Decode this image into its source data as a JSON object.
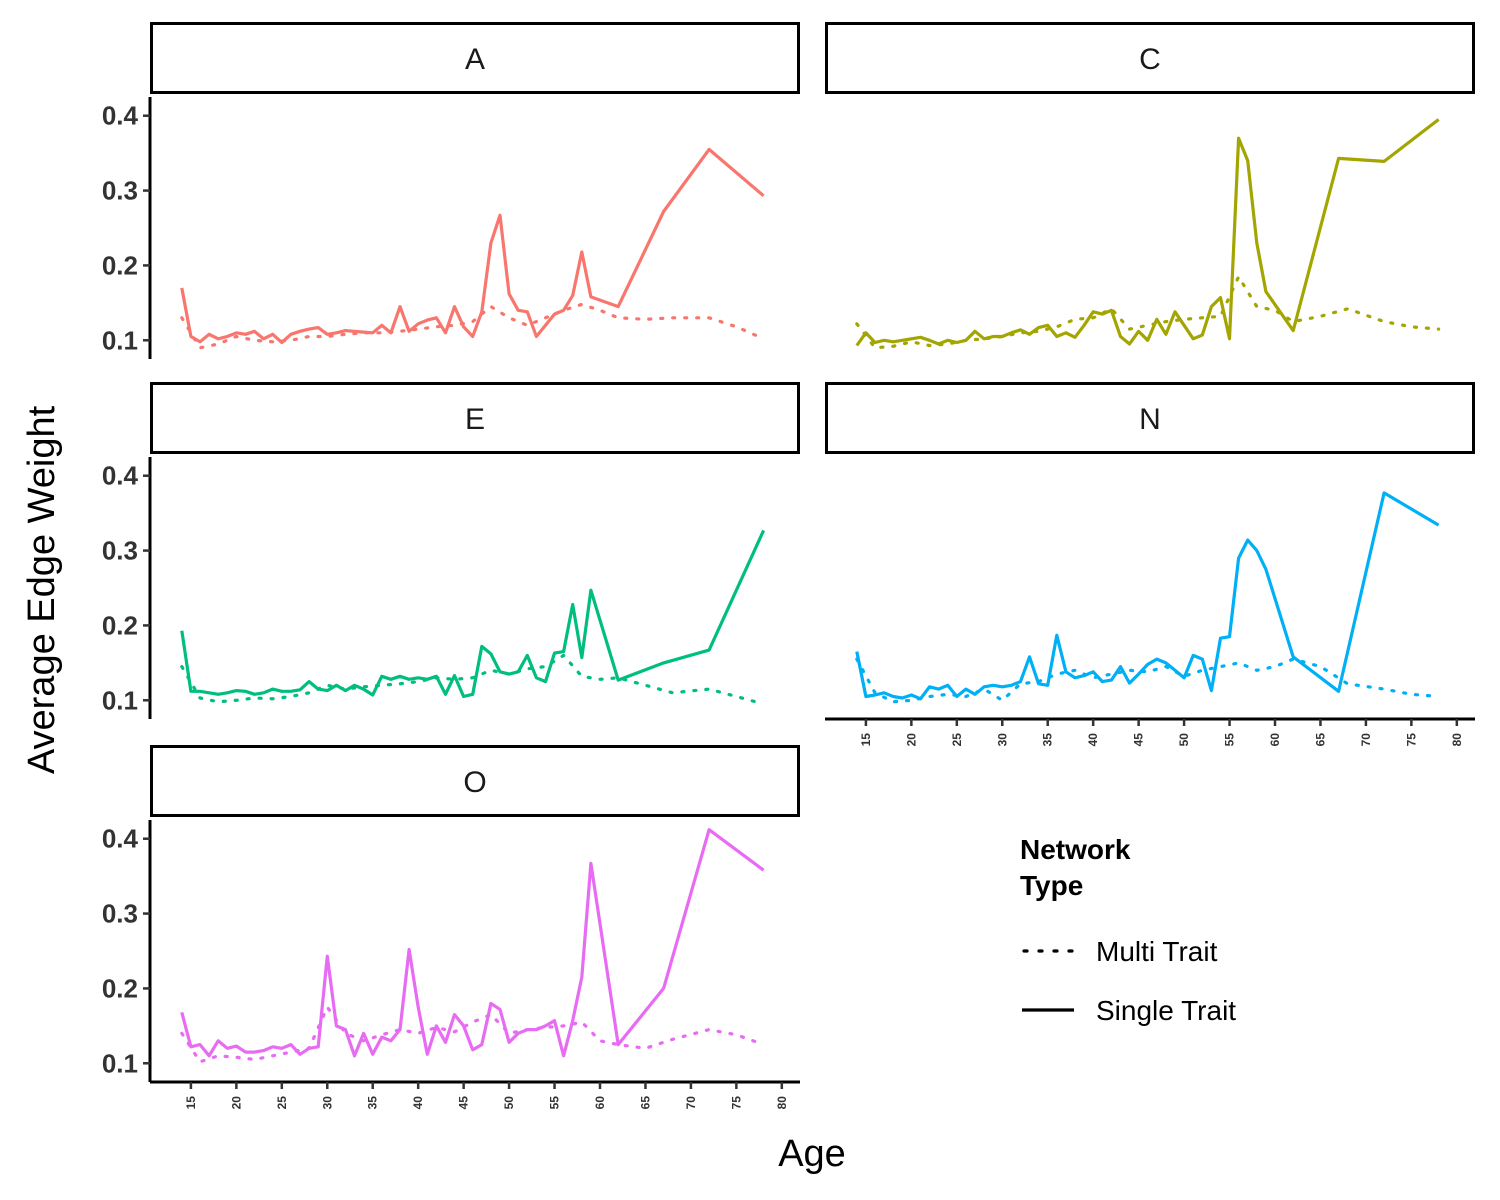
{
  "chart_data": {
    "type": "line",
    "xlabel": "Age",
    "ylabel": "Average Edge Weight",
    "ylim": [
      0.075,
      0.425
    ],
    "xlim": [
      10.5,
      82
    ],
    "y_ticks": [
      "0.1",
      "0.2",
      "0.3",
      "0.4"
    ],
    "x_ticks": [
      "15",
      "20",
      "25",
      "30",
      "35",
      "40",
      "45",
      "50",
      "55",
      "60",
      "65",
      "70",
      "75",
      "80"
    ],
    "legend": {
      "title_lines": [
        "Network",
        "Type"
      ],
      "entries": [
        "Multi Trait",
        "Single Trait"
      ]
    },
    "panels": [
      {
        "name": "A",
        "color": "#F8766D",
        "series": [
          {
            "name": "Single Trait",
            "x": [
              14,
              15,
              16,
              17,
              18,
              19,
              20,
              21,
              22,
              23,
              24,
              25,
              26,
              27,
              28,
              29,
              30,
              31,
              32,
              33,
              34,
              35,
              36,
              37,
              38,
              39,
              40,
              41,
              42,
              43,
              44,
              45,
              46,
              47,
              48,
              49,
              50,
              51,
              52,
              53,
              54,
              55,
              56,
              57,
              58,
              59,
              62,
              67,
              72,
              78
            ],
            "values": [
              0.17,
              0.105,
              0.098,
              0.108,
              0.102,
              0.105,
              0.11,
              0.108,
              0.112,
              0.102,
              0.108,
              0.097,
              0.108,
              0.112,
              0.115,
              0.117,
              0.108,
              0.11,
              0.113,
              0.112,
              0.111,
              0.11,
              0.12,
              0.11,
              0.145,
              0.112,
              0.122,
              0.127,
              0.13,
              0.11,
              0.145,
              0.118,
              0.105,
              0.138,
              0.23,
              0.267,
              0.162,
              0.14,
              0.138,
              0.105,
              0.12,
              0.135,
              0.14,
              0.16,
              0.218,
              0.158,
              0.145,
              0.272,
              0.355,
              0.293
            ]
          },
          {
            "name": "Multi Trait",
            "x": [
              14,
              16,
              18,
              20,
              22,
              24,
              26,
              28,
              30,
              32,
              34,
              36,
              38,
              40,
              42,
              44,
              46,
              48,
              50,
              52,
              54,
              56,
              58,
              60,
              62,
              65,
              68,
              72,
              75,
              78
            ],
            "values": [
              0.13,
              0.09,
              0.095,
              0.105,
              0.1,
              0.098,
              0.1,
              0.105,
              0.105,
              0.108,
              0.11,
              0.11,
              0.112,
              0.115,
              0.118,
              0.12,
              0.125,
              0.145,
              0.13,
              0.12,
              0.13,
              0.14,
              0.148,
              0.14,
              0.13,
              0.128,
              0.13,
              0.13,
              0.118,
              0.102
            ]
          }
        ]
      },
      {
        "name": "C",
        "color": "#A3A500",
        "series": [
          {
            "name": "Single Trait",
            "x": [
              14,
              15,
              16,
              17,
              18,
              19,
              20,
              21,
              22,
              23,
              24,
              25,
              26,
              27,
              28,
              29,
              30,
              31,
              32,
              33,
              34,
              35,
              36,
              37,
              38,
              39,
              40,
              41,
              42,
              43,
              44,
              45,
              46,
              47,
              48,
              49,
              50,
              51,
              52,
              53,
              54,
              55,
              56,
              57,
              58,
              59,
              62,
              67,
              72,
              78
            ],
            "values": [
              0.093,
              0.11,
              0.097,
              0.1,
              0.098,
              0.1,
              0.102,
              0.104,
              0.1,
              0.095,
              0.1,
              0.097,
              0.1,
              0.112,
              0.102,
              0.105,
              0.105,
              0.11,
              0.114,
              0.108,
              0.117,
              0.12,
              0.105,
              0.11,
              0.104,
              0.12,
              0.138,
              0.135,
              0.14,
              0.105,
              0.095,
              0.112,
              0.1,
              0.128,
              0.108,
              0.138,
              0.12,
              0.102,
              0.107,
              0.145,
              0.157,
              0.102,
              0.37,
              0.34,
              0.23,
              0.165,
              0.113,
              0.343,
              0.339,
              0.395
            ]
          },
          {
            "name": "Multi Trait",
            "x": [
              14,
              16,
              18,
              20,
              22,
              24,
              26,
              28,
              30,
              32,
              34,
              36,
              38,
              40,
              42,
              44,
              46,
              48,
              50,
              52,
              54,
              56,
              58,
              60,
              62,
              65,
              68,
              72,
              75,
              78
            ],
            "values": [
              0.122,
              0.09,
              0.092,
              0.098,
              0.093,
              0.095,
              0.1,
              0.102,
              0.105,
              0.11,
              0.112,
              0.118,
              0.128,
              0.13,
              0.142,
              0.115,
              0.12,
              0.125,
              0.128,
              0.13,
              0.132,
              0.185,
              0.145,
              0.14,
              0.125,
              0.132,
              0.142,
              0.125,
              0.118,
              0.115
            ]
          }
        ]
      },
      {
        "name": "E",
        "color": "#00BF7D",
        "series": [
          {
            "name": "Single Trait",
            "x": [
              14,
              15,
              16,
              17,
              18,
              19,
              20,
              21,
              22,
              23,
              24,
              25,
              26,
              27,
              28,
              29,
              30,
              31,
              32,
              33,
              34,
              35,
              36,
              37,
              38,
              39,
              40,
              41,
              42,
              43,
              44,
              45,
              46,
              47,
              48,
              49,
              50,
              51,
              52,
              53,
              54,
              55,
              56,
              57,
              58,
              59,
              62,
              67,
              72,
              78
            ],
            "values": [
              0.193,
              0.112,
              0.112,
              0.11,
              0.108,
              0.11,
              0.113,
              0.112,
              0.108,
              0.11,
              0.115,
              0.112,
              0.112,
              0.114,
              0.125,
              0.115,
              0.113,
              0.12,
              0.113,
              0.12,
              0.115,
              0.107,
              0.132,
              0.128,
              0.132,
              0.128,
              0.13,
              0.128,
              0.132,
              0.108,
              0.133,
              0.105,
              0.108,
              0.172,
              0.162,
              0.138,
              0.135,
              0.138,
              0.16,
              0.13,
              0.125,
              0.163,
              0.165,
              0.228,
              0.157,
              0.247,
              0.127,
              0.15,
              0.167,
              0.327
            ]
          },
          {
            "name": "Multi Trait",
            "x": [
              14,
              16,
              18,
              20,
              22,
              24,
              26,
              28,
              30,
              32,
              34,
              36,
              38,
              40,
              42,
              44,
              46,
              48,
              50,
              52,
              54,
              56,
              58,
              60,
              62,
              65,
              68,
              72,
              75,
              78
            ],
            "values": [
              0.145,
              0.103,
              0.098,
              0.1,
              0.103,
              0.102,
              0.105,
              0.11,
              0.12,
              0.115,
              0.118,
              0.12,
              0.122,
              0.125,
              0.13,
              0.128,
              0.13,
              0.14,
              0.135,
              0.142,
              0.145,
              0.16,
              0.132,
              0.128,
              0.13,
              0.12,
              0.11,
              0.115,
              0.105,
              0.095
            ]
          }
        ]
      },
      {
        "name": "N",
        "color": "#00B0F6",
        "series": [
          {
            "name": "Single Trait",
            "x": [
              14,
              15,
              16,
              17,
              18,
              19,
              20,
              21,
              22,
              23,
              24,
              25,
              26,
              27,
              28,
              29,
              30,
              31,
              32,
              33,
              34,
              35,
              36,
              37,
              38,
              39,
              40,
              41,
              42,
              43,
              44,
              45,
              46,
              47,
              48,
              49,
              50,
              51,
              52,
              53,
              54,
              55,
              56,
              57,
              58,
              59,
              62,
              67,
              72,
              78
            ],
            "values": [
              0.165,
              0.105,
              0.107,
              0.11,
              0.105,
              0.103,
              0.107,
              0.102,
              0.118,
              0.115,
              0.12,
              0.105,
              0.115,
              0.108,
              0.118,
              0.12,
              0.118,
              0.12,
              0.125,
              0.158,
              0.122,
              0.12,
              0.187,
              0.138,
              0.13,
              0.133,
              0.138,
              0.125,
              0.127,
              0.145,
              0.123,
              0.135,
              0.148,
              0.155,
              0.15,
              0.14,
              0.13,
              0.16,
              0.155,
              0.113,
              0.183,
              0.185,
              0.29,
              0.314,
              0.3,
              0.275,
              0.158,
              0.112,
              0.377,
              0.334
            ]
          },
          {
            "name": "Multi Trait",
            "x": [
              14,
              16,
              18,
              20,
              22,
              24,
              26,
              28,
              30,
              32,
              34,
              36,
              38,
              40,
              42,
              44,
              46,
              48,
              50,
              52,
              54,
              56,
              58,
              60,
              62,
              65,
              68,
              72,
              75,
              78
            ],
            "values": [
              0.155,
              0.11,
              0.098,
              0.1,
              0.105,
              0.108,
              0.105,
              0.115,
              0.1,
              0.122,
              0.125,
              0.135,
              0.14,
              0.13,
              0.135,
              0.14,
              0.138,
              0.145,
              0.132,
              0.14,
              0.145,
              0.15,
              0.14,
              0.145,
              0.155,
              0.145,
              0.122,
              0.115,
              0.108,
              0.105
            ]
          }
        ]
      },
      {
        "name": "O",
        "color": "#E76BF3",
        "series": [
          {
            "name": "Single Trait",
            "x": [
              14,
              15,
              16,
              17,
              18,
              19,
              20,
              21,
              22,
              23,
              24,
              25,
              26,
              27,
              28,
              29,
              30,
              31,
              32,
              33,
              34,
              35,
              36,
              37,
              38,
              39,
              40,
              41,
              42,
              43,
              44,
              45,
              46,
              47,
              48,
              49,
              50,
              51,
              52,
              53,
              54,
              55,
              56,
              57,
              58,
              59,
              62,
              67,
              72,
              78
            ],
            "values": [
              0.168,
              0.122,
              0.125,
              0.11,
              0.13,
              0.12,
              0.123,
              0.115,
              0.115,
              0.117,
              0.122,
              0.12,
              0.125,
              0.112,
              0.12,
              0.122,
              0.243,
              0.15,
              0.145,
              0.11,
              0.14,
              0.112,
              0.135,
              0.13,
              0.145,
              0.252,
              0.175,
              0.112,
              0.15,
              0.128,
              0.165,
              0.15,
              0.118,
              0.125,
              0.18,
              0.172,
              0.128,
              0.14,
              0.145,
              0.145,
              0.15,
              0.157,
              0.11,
              0.157,
              0.215,
              0.367,
              0.125,
              0.2,
              0.412,
              0.358
            ]
          },
          {
            "name": "Multi Trait",
            "x": [
              14,
              16,
              18,
              20,
              22,
              24,
              26,
              28,
              30,
              32,
              34,
              36,
              38,
              40,
              42,
              44,
              46,
              48,
              50,
              52,
              54,
              56,
              58,
              60,
              62,
              65,
              68,
              72,
              75,
              78
            ],
            "values": [
              0.14,
              0.102,
              0.11,
              0.108,
              0.105,
              0.11,
              0.115,
              0.12,
              0.175,
              0.14,
              0.13,
              0.138,
              0.145,
              0.14,
              0.148,
              0.142,
              0.155,
              0.165,
              0.14,
              0.145,
              0.148,
              0.15,
              0.155,
              0.13,
              0.125,
              0.12,
              0.132,
              0.145,
              0.138,
              0.125
            ]
          }
        ]
      }
    ]
  }
}
